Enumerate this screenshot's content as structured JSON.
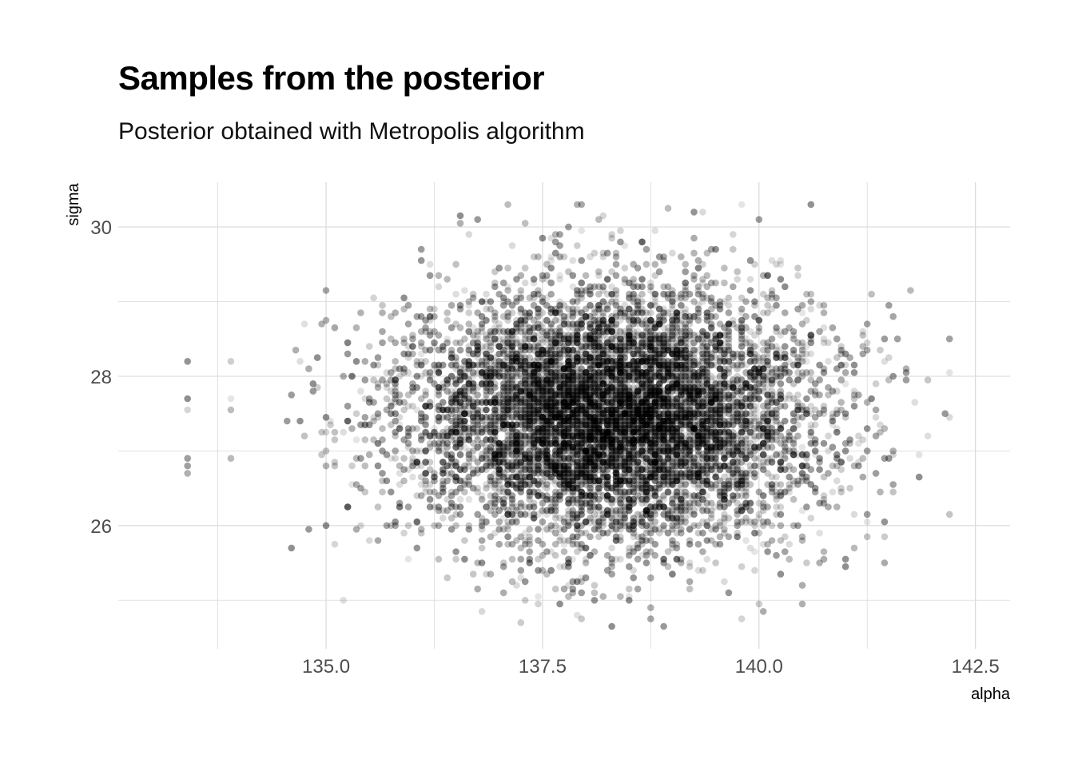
{
  "chart_data": {
    "type": "scatter",
    "title": "Samples from the posterior",
    "subtitle": "Posterior obtained with Metropolis algorithm",
    "xlabel": "alpha",
    "ylabel": "sigma",
    "xlim": [
      132.6,
      142.9
    ],
    "ylim": [
      24.35,
      30.6
    ],
    "x_ticks": [
      135.0,
      137.5,
      140.0,
      142.5
    ],
    "x_tick_labels": [
      "135.0",
      "137.5",
      "140.0",
      "142.5"
    ],
    "y_ticks": [
      26,
      28,
      30
    ],
    "y_tick_labels": [
      "26",
      "28",
      "30"
    ],
    "grid": true,
    "legend": "none",
    "point_color": "#000000",
    "point_alpha_range": [
      0.1,
      0.45
    ],
    "distribution": {
      "center_x": 138.3,
      "center_y": 27.5,
      "n_points": 8000
    },
    "sample_points": [
      {
        "x": 133.4,
        "y": 28.2
      },
      {
        "x": 133.4,
        "y": 27.7
      },
      {
        "x": 133.4,
        "y": 27.55
      },
      {
        "x": 133.4,
        "y": 26.9
      },
      {
        "x": 133.4,
        "y": 26.8
      },
      {
        "x": 133.4,
        "y": 26.7
      },
      {
        "x": 133.9,
        "y": 28.2
      },
      {
        "x": 133.9,
        "y": 27.7
      },
      {
        "x": 133.9,
        "y": 27.55
      },
      {
        "x": 133.9,
        "y": 26.9
      },
      {
        "x": 142.2,
        "y": 28.5
      },
      {
        "x": 142.2,
        "y": 28.05
      },
      {
        "x": 142.2,
        "y": 27.45
      },
      {
        "x": 142.2,
        "y": 26.15
      },
      {
        "x": 139.8,
        "y": 30.3
      },
      {
        "x": 140.6,
        "y": 30.3
      },
      {
        "x": 137.1,
        "y": 30.3
      },
      {
        "x": 137.9,
        "y": 30.3
      },
      {
        "x": 137.95,
        "y": 30.3
      },
      {
        "x": 138.3,
        "y": 24.65
      },
      {
        "x": 138.9,
        "y": 24.65
      },
      {
        "x": 138.75,
        "y": 24.75
      },
      {
        "x": 139.8,
        "y": 24.75
      },
      {
        "x": 137.95,
        "y": 24.75
      },
      {
        "x": 135.2,
        "y": 25.0
      },
      {
        "x": 140.5,
        "y": 24.95
      },
      {
        "x": 141.0,
        "y": 25.45
      }
    ]
  }
}
